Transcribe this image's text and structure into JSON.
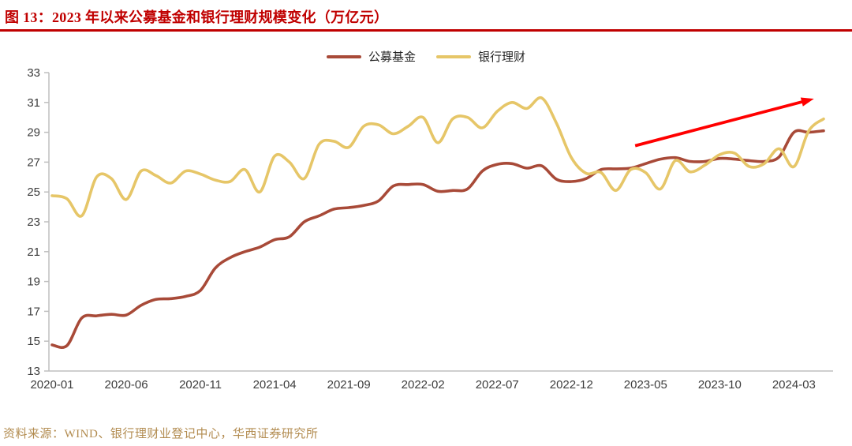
{
  "header": {
    "title": "图 13：2023 年以来公募基金和银行理财规模变化（万亿元）",
    "accent_color": "#c00000"
  },
  "legend": [
    {
      "label": "公募基金",
      "color": "#a84a38"
    },
    {
      "label": "银行理财",
      "color": "#e6c668"
    }
  ],
  "source_note": {
    "text": "资料来源：WIND、银行理财业登记中心，华西证券研究所",
    "color": "#b28b4f"
  },
  "axis": {
    "line_color": "#bfbfbf",
    "label_color": "#3d3d3d"
  },
  "chart_data": {
    "type": "line",
    "title": "2023 年以来公募基金和银行理财规模变化（万亿元）",
    "x": [
      "2020-01",
      "2020-02",
      "2020-03",
      "2020-04",
      "2020-05",
      "2020-06",
      "2020-07",
      "2020-08",
      "2020-09",
      "2020-10",
      "2020-11",
      "2020-12",
      "2021-01",
      "2021-02",
      "2021-03",
      "2021-04",
      "2021-05",
      "2021-06",
      "2021-07",
      "2021-08",
      "2021-09",
      "2021-10",
      "2021-11",
      "2021-12",
      "2022-01",
      "2022-02",
      "2022-03",
      "2022-04",
      "2022-05",
      "2022-06",
      "2022-07",
      "2022-08",
      "2022-09",
      "2022-10",
      "2022-11",
      "2022-12",
      "2023-01",
      "2023-02",
      "2023-03",
      "2023-04",
      "2023-05",
      "2023-06",
      "2023-07",
      "2023-08",
      "2023-09",
      "2023-10",
      "2023-11",
      "2023-12",
      "2024-01",
      "2024-02",
      "2024-03",
      "2024-04",
      "2024-05"
    ],
    "series": [
      {
        "name": "公募基金",
        "color": "#a84a38",
        "values": [
          14.75,
          14.7,
          16.55,
          16.7,
          16.8,
          16.75,
          17.4,
          17.8,
          17.85,
          18.0,
          18.4,
          19.9,
          20.6,
          21.0,
          21.3,
          21.8,
          22.0,
          23.0,
          23.4,
          23.85,
          23.95,
          24.1,
          24.4,
          25.4,
          25.5,
          25.5,
          25.05,
          25.1,
          25.2,
          26.4,
          26.85,
          26.9,
          26.6,
          26.75,
          25.85,
          25.7,
          25.9,
          26.5,
          26.55,
          26.6,
          26.9,
          27.2,
          27.3,
          27.05,
          27.05,
          27.25,
          27.2,
          27.1,
          27.05,
          27.35,
          29.0,
          29.0,
          29.1
        ]
      },
      {
        "name": "银行理财",
        "color": "#e6c668",
        "values": [
          24.75,
          24.55,
          23.4,
          26.0,
          25.9,
          24.5,
          26.4,
          26.1,
          25.6,
          26.4,
          26.2,
          25.8,
          25.7,
          26.5,
          25.0,
          27.4,
          27.0,
          25.9,
          28.2,
          28.4,
          28.0,
          29.4,
          29.5,
          28.9,
          29.4,
          30.0,
          28.3,
          29.9,
          30.0,
          29.3,
          30.4,
          31.0,
          30.6,
          31.3,
          29.6,
          27.3,
          26.25,
          26.3,
          25.1,
          26.5,
          26.3,
          25.2,
          27.1,
          26.35,
          26.8,
          27.5,
          27.6,
          26.7,
          26.9,
          27.9,
          26.7,
          29.1,
          29.9
        ]
      }
    ],
    "ylim": [
      13,
      33
    ],
    "ytick_step": 2,
    "xticks": [
      "2020-01",
      "2020-06",
      "2020-11",
      "2021-04",
      "2021-09",
      "2022-02",
      "2022-07",
      "2022-12",
      "2023-05",
      "2023-10",
      "2024-03"
    ],
    "grid": false,
    "legend_position": "top-center",
    "annotation": {
      "type": "arrow",
      "color": "#ff0000",
      "from": {
        "x_index": 39.3,
        "value": 28.1
      },
      "to": {
        "x_index": 51.35,
        "value": 31.25
      }
    }
  }
}
